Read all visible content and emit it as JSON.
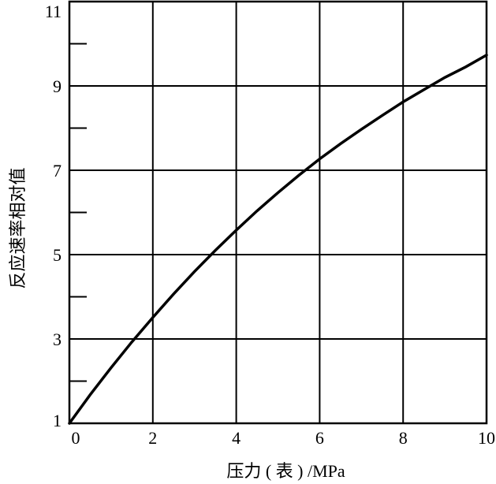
{
  "chart_data": {
    "type": "line",
    "xlabel": "压力 ( 表 ) /MPa",
    "ylabel": "反应速率相对值",
    "xlim": [
      0,
      10
    ],
    "ylim": [
      1,
      11
    ],
    "x_ticks": [
      0,
      2,
      4,
      6,
      8,
      10
    ],
    "y_ticks": [
      1,
      3,
      5,
      7,
      9,
      11
    ],
    "y_minor_ticks": [
      2,
      4,
      6,
      8,
      10
    ],
    "grid": true,
    "series": [
      {
        "x": [
          0,
          0.5,
          1,
          1.5,
          2,
          2.5,
          3,
          3.5,
          4,
          4.5,
          5,
          5.5,
          6,
          6.5,
          7,
          7.5,
          8,
          8.5,
          9,
          9.5,
          10
        ],
        "y": [
          1.0,
          1.68,
          2.32,
          2.93,
          3.51,
          4.07,
          4.6,
          5.1,
          5.58,
          6.04,
          6.47,
          6.88,
          7.27,
          7.63,
          7.97,
          8.3,
          8.62,
          8.91,
          9.2,
          9.45,
          9.73
        ]
      }
    ]
  }
}
